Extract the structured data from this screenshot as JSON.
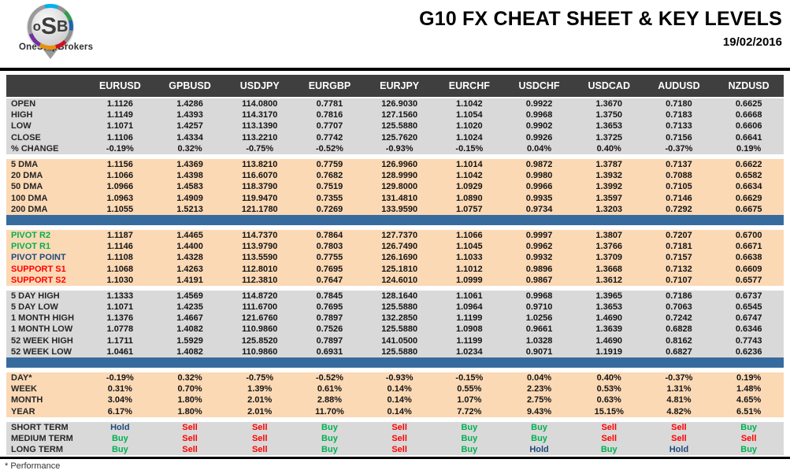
{
  "logo": {
    "letters": [
      "o",
      "S",
      "B"
    ],
    "brand": "OneStopBrokers"
  },
  "header": {
    "title": "G10 FX CHEAT SHEET & KEY LEVELS",
    "date": "19/02/2016"
  },
  "columns": [
    "EURUSD",
    "GPBUSD",
    "USDJPY",
    "EURGBP",
    "EURJPY",
    "EURCHF",
    "USDCHF",
    "USDCAD",
    "AUDUSD",
    "NZDUSD"
  ],
  "sections": [
    {
      "id": "ohlc",
      "bg": "gray",
      "divider_after": false,
      "rows": [
        {
          "label": "OPEN",
          "values": [
            "1.1126",
            "1.4286",
            "114.0800",
            "0.7781",
            "126.9030",
            "1.1042",
            "0.9922",
            "1.3670",
            "0.7180",
            "0.6625"
          ]
        },
        {
          "label": "HIGH",
          "values": [
            "1.1149",
            "1.4393",
            "114.3170",
            "0.7816",
            "127.1560",
            "1.1054",
            "0.9968",
            "1.3750",
            "0.7183",
            "0.6668"
          ]
        },
        {
          "label": "LOW",
          "values": [
            "1.1071",
            "1.4257",
            "113.1390",
            "0.7707",
            "125.5880",
            "1.1020",
            "0.9902",
            "1.3653",
            "0.7133",
            "0.6606"
          ]
        },
        {
          "label": "CLOSE",
          "values": [
            "1.1106",
            "1.4334",
            "113.2210",
            "0.7742",
            "125.7620",
            "1.1024",
            "0.9926",
            "1.3725",
            "0.7156",
            "0.6641"
          ]
        },
        {
          "label": "% CHANGE",
          "values": [
            "-0.19%",
            "0.32%",
            "-0.75%",
            "-0.52%",
            "-0.93%",
            "-0.15%",
            "0.04%",
            "0.40%",
            "-0.37%",
            "0.19%"
          ]
        }
      ]
    },
    {
      "id": "dma",
      "bg": "peach",
      "divider_after": true,
      "rows": [
        {
          "label": "5 DMA",
          "values": [
            "1.1156",
            "1.4369",
            "113.8210",
            "0.7759",
            "126.9960",
            "1.1014",
            "0.9872",
            "1.3787",
            "0.7137",
            "0.6622"
          ]
        },
        {
          "label": "20 DMA",
          "values": [
            "1.1066",
            "1.4398",
            "116.6070",
            "0.7682",
            "128.9990",
            "1.1042",
            "0.9980",
            "1.3932",
            "0.7088",
            "0.6582"
          ]
        },
        {
          "label": "50 DMA",
          "values": [
            "1.0966",
            "1.4583",
            "118.3790",
            "0.7519",
            "129.8000",
            "1.0929",
            "0.9966",
            "1.3992",
            "0.7105",
            "0.6634"
          ]
        },
        {
          "label": "100 DMA",
          "values": [
            "1.0963",
            "1.4909",
            "119.9470",
            "0.7355",
            "131.4810",
            "1.0890",
            "0.9935",
            "1.3597",
            "0.7146",
            "0.6629"
          ]
        },
        {
          "label": "200 DMA",
          "values": [
            "1.1055",
            "1.5213",
            "121.1780",
            "0.7269",
            "133.9590",
            "1.0757",
            "0.9734",
            "1.3203",
            "0.7292",
            "0.6675"
          ]
        }
      ]
    },
    {
      "id": "pivots",
      "bg": "peach",
      "divider_after": false,
      "rows": [
        {
          "label": "PIVOT R2",
          "label_color": "pivot_green",
          "values": [
            "1.1187",
            "1.4465",
            "114.7370",
            "0.7864",
            "127.7370",
            "1.1066",
            "0.9997",
            "1.3807",
            "0.7207",
            "0.6700"
          ]
        },
        {
          "label": "PIVOT R1",
          "label_color": "pivot_green",
          "values": [
            "1.1146",
            "1.4400",
            "113.9790",
            "0.7803",
            "126.7490",
            "1.1045",
            "0.9962",
            "1.3766",
            "0.7181",
            "0.6671"
          ]
        },
        {
          "label": "PIVOT POINT",
          "label_color": "pivot_navy",
          "values": [
            "1.1108",
            "1.4328",
            "113.5590",
            "0.7755",
            "126.1690",
            "1.1033",
            "0.9932",
            "1.3709",
            "0.7157",
            "0.6638"
          ]
        },
        {
          "label": "SUPPORT S1",
          "label_color": "support_red",
          "values": [
            "1.1068",
            "1.4263",
            "112.8010",
            "0.7695",
            "125.1810",
            "1.1012",
            "0.9896",
            "1.3668",
            "0.7132",
            "0.6609"
          ]
        },
        {
          "label": "SUPPORT S2",
          "label_color": "support_red",
          "values": [
            "1.1030",
            "1.4191",
            "112.3810",
            "0.7647",
            "124.6010",
            "1.0999",
            "0.9867",
            "1.3612",
            "0.7107",
            "0.6577"
          ]
        }
      ]
    },
    {
      "id": "ranges",
      "bg": "gray",
      "divider_after": true,
      "rows": [
        {
          "label": "5 DAY HIGH",
          "values": [
            "1.1333",
            "1.4569",
            "114.8720",
            "0.7845",
            "128.1640",
            "1.1061",
            "0.9968",
            "1.3965",
            "0.7186",
            "0.6737"
          ]
        },
        {
          "label": "5 DAY LOW",
          "values": [
            "1.1071",
            "1.4235",
            "111.6700",
            "0.7695",
            "125.5880",
            "1.0964",
            "0.9710",
            "1.3653",
            "0.7063",
            "0.6545"
          ]
        },
        {
          "label": "1 MONTH HIGH",
          "values": [
            "1.1376",
            "1.4667",
            "121.6760",
            "0.7897",
            "132.2850",
            "1.1199",
            "1.0256",
            "1.4690",
            "0.7242",
            "0.6747"
          ]
        },
        {
          "label": "1 MONTH LOW",
          "values": [
            "1.0778",
            "1.4082",
            "110.9860",
            "0.7526",
            "125.5880",
            "1.0908",
            "0.9661",
            "1.3639",
            "0.6828",
            "0.6346"
          ]
        },
        {
          "label": "52 WEEK HIGH",
          "values": [
            "1.1711",
            "1.5929",
            "125.8520",
            "0.7897",
            "141.0500",
            "1.1199",
            "1.0328",
            "1.4690",
            "0.8162",
            "0.7743"
          ]
        },
        {
          "label": "52 WEEK LOW",
          "values": [
            "1.0461",
            "1.4082",
            "110.9860",
            "0.6931",
            "125.5880",
            "1.0234",
            "0.9071",
            "1.1919",
            "0.6827",
            "0.6236"
          ]
        }
      ]
    },
    {
      "id": "performance",
      "bg": "peach",
      "divider_after": false,
      "rows": [
        {
          "label": "DAY*",
          "values": [
            "-0.19%",
            "0.32%",
            "-0.75%",
            "-0.52%",
            "-0.93%",
            "-0.15%",
            "0.04%",
            "0.40%",
            "-0.37%",
            "0.19%"
          ]
        },
        {
          "label": "WEEK",
          "values": [
            "0.31%",
            "0.70%",
            "1.39%",
            "0.61%",
            "0.14%",
            "0.55%",
            "2.23%",
            "0.53%",
            "1.31%",
            "1.48%"
          ]
        },
        {
          "label": "MONTH",
          "values": [
            "3.04%",
            "1.80%",
            "2.01%",
            "2.88%",
            "0.14%",
            "1.07%",
            "2.75%",
            "0.63%",
            "4.81%",
            "4.65%"
          ]
        },
        {
          "label": "YEAR",
          "values": [
            "6.17%",
            "1.80%",
            "2.01%",
            "11.70%",
            "0.14%",
            "7.72%",
            "9.43%",
            "15.15%",
            "4.82%",
            "6.51%"
          ]
        }
      ]
    },
    {
      "id": "signals",
      "bg": "gray",
      "divider_after": false,
      "signal_row": true,
      "rows": [
        {
          "label": "SHORT TERM",
          "values": [
            "Hold",
            "Sell",
            "Sell",
            "Buy",
            "Sell",
            "Buy",
            "Buy",
            "Sell",
            "Sell",
            "Buy"
          ]
        },
        {
          "label": "MEDIUM TERM",
          "values": [
            "Buy",
            "Sell",
            "Sell",
            "Buy",
            "Sell",
            "Buy",
            "Buy",
            "Sell",
            "Sell",
            "Sell"
          ]
        },
        {
          "label": "LONG TERM",
          "values": [
            "Buy",
            "Sell",
            "Sell",
            "Buy",
            "Sell",
            "Buy",
            "Hold",
            "Buy",
            "Hold",
            "Buy"
          ]
        }
      ]
    }
  ],
  "footer": {
    "note": "* Performance"
  },
  "colors": {
    "header_bg": "#3f3f3f",
    "gray": "#d9d9d9",
    "peach": "#fbd9b5",
    "divider_blue": "#376b9e",
    "buy": "#00b050",
    "sell": "#fe0000",
    "hold": "#1f497d",
    "pivot_green": "#00b050",
    "pivot_navy": "#1f497d",
    "support_red": "#fe0000"
  }
}
